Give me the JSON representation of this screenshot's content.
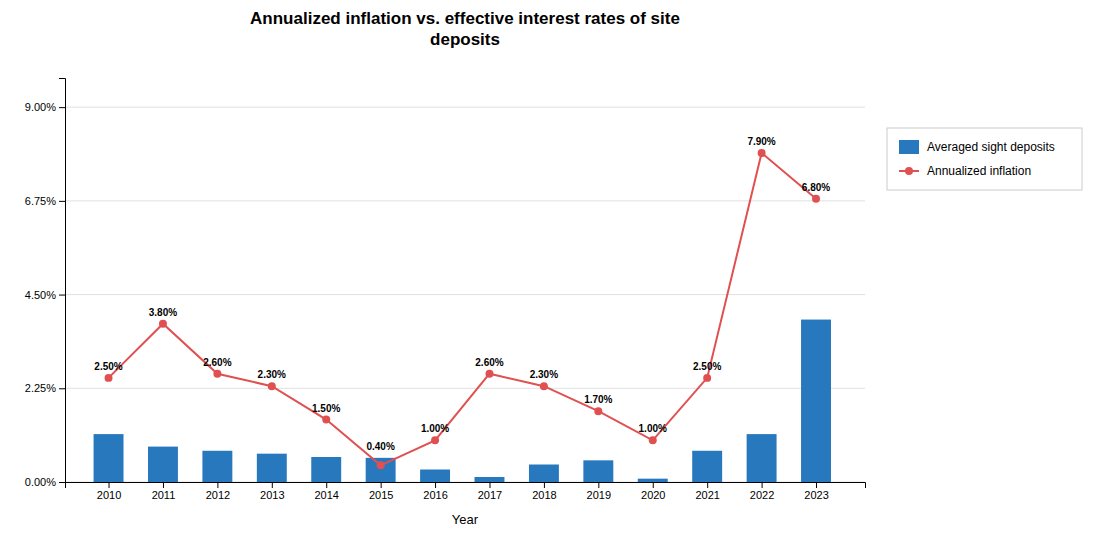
{
  "chart_data": {
    "type": "bar",
    "title": "Annualized inflation vs. effective interest rates of site\ndeposits",
    "xlabel": "Year",
    "x": [
      2010,
      2011,
      2012,
      2013,
      2014,
      2015,
      2016,
      2017,
      2018,
      2019,
      2020,
      2021,
      2022,
      2023
    ],
    "xlim": [
      2009.2,
      2023.9
    ],
    "xticks": [
      2010,
      2011,
      2012,
      2013,
      2014,
      2015,
      2016,
      2017,
      2018,
      2019,
      2020,
      2021,
      2022,
      2023
    ],
    "ylim": [
      0,
      0.097
    ],
    "yticks": [
      {
        "value": 0.0,
        "label": "0.00%"
      },
      {
        "value": 0.0225,
        "label": "2.25%"
      },
      {
        "value": 0.045,
        "label": "4.50%"
      },
      {
        "value": 0.0675,
        "label": "6.75%"
      },
      {
        "value": 0.09,
        "label": "9.00%"
      }
    ],
    "grid": true,
    "legend": "right",
    "series": [
      {
        "name": "Averaged sight deposits",
        "type": "bar",
        "color": "#2878be",
        "values": [
          0.0115,
          0.0085,
          0.0075,
          0.0068,
          0.006,
          0.0058,
          0.003,
          0.0012,
          0.0042,
          0.0052,
          0.0008,
          0.0075,
          0.0115,
          0.039
        ]
      },
      {
        "name": "Annualized inflation",
        "type": "line",
        "color": "#e05050",
        "marker": "circle",
        "data_labels": true,
        "values": [
          0.025,
          0.038,
          0.026,
          0.023,
          0.015,
          0.004,
          0.01,
          0.026,
          0.023,
          0.017,
          0.01,
          0.025,
          0.079,
          0.068
        ],
        "value_labels": [
          "2.50%",
          "3.80%",
          "2.60%",
          "2.30%",
          "1.50%",
          "0.40%",
          "1.00%",
          "2.60%",
          "2.30%",
          "1.70%",
          "1.00%",
          "2.50%",
          "7.90%",
          "6.80%"
        ]
      }
    ]
  }
}
